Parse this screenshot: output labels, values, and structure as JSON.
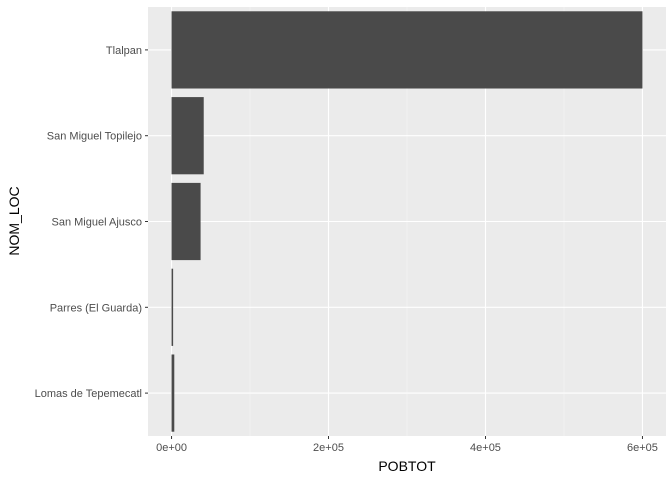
{
  "chart_data": {
    "type": "bar",
    "orientation": "horizontal",
    "categories": [
      "Tlalpan",
      "San Miguel Topilejo",
      "San Miguel Ajusco",
      "Parres (El Guarda)",
      "Lomas de Tepemecatl"
    ],
    "values": [
      600000,
      41000,
      37000,
      2000,
      3500
    ],
    "xlabel": "POBTOT",
    "ylabel": "NOM_LOC",
    "xlim": [
      -30000,
      630000
    ],
    "x_ticks": [
      0,
      200000,
      400000,
      600000
    ],
    "x_tick_labels": [
      "0e+00",
      "2e+05",
      "4e+05",
      "6e+05"
    ],
    "grid": true,
    "colors": {
      "bar": "#4a4a4a",
      "panel": "#ebebeb",
      "grid_major": "#ffffff",
      "grid_minor": "#f5f5f5",
      "tick": "#333333"
    }
  }
}
